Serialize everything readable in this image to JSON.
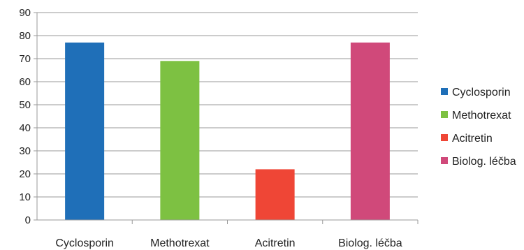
{
  "chart_data": {
    "type": "bar",
    "title": "",
    "xlabel": "",
    "ylabel": "",
    "categories": [
      "Cyclosporin",
      "Methotrexat",
      "Acitretin",
      "Biolog. léčba"
    ],
    "values": [
      77,
      69,
      22,
      77
    ],
    "colors": [
      "#1f6fb8",
      "#7dc142",
      "#ef4636",
      "#d0497a"
    ],
    "yticks": [
      "0",
      "10",
      "20",
      "30",
      "40",
      "50",
      "60",
      "70",
      "80",
      "90"
    ],
    "ylim": [
      0,
      90
    ],
    "grid": true,
    "legend": {
      "placement": "right",
      "entries": [
        "Cyclosporin",
        "Methotrexat",
        "Acitretin",
        "Biolog. léčba"
      ]
    }
  }
}
